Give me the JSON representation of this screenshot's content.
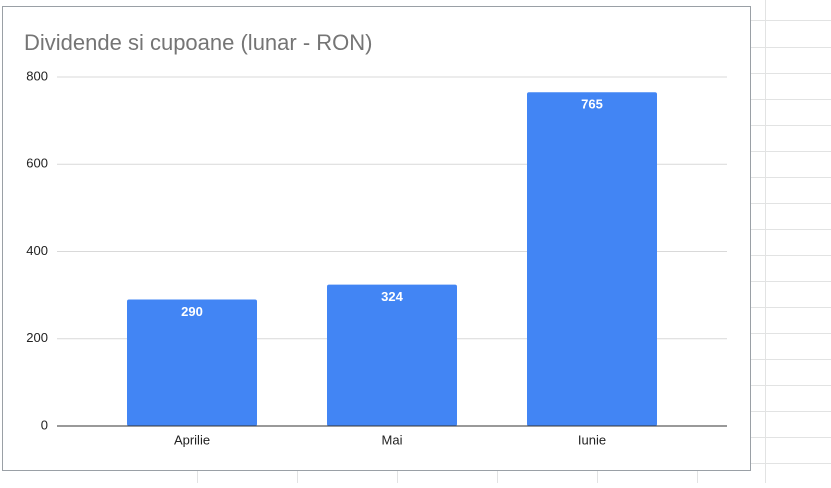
{
  "chart_data": {
    "type": "bar",
    "title": "Dividende si cupoane (lunar - RON)",
    "categories": [
      "Aprilie",
      "Mai",
      "Iunie"
    ],
    "values": [
      290,
      324,
      765
    ],
    "color": "#4285f4",
    "ylim": [
      0,
      800
    ],
    "yticks": [
      0,
      200,
      400,
      600,
      800
    ],
    "grid": true,
    "data_labels": true
  }
}
